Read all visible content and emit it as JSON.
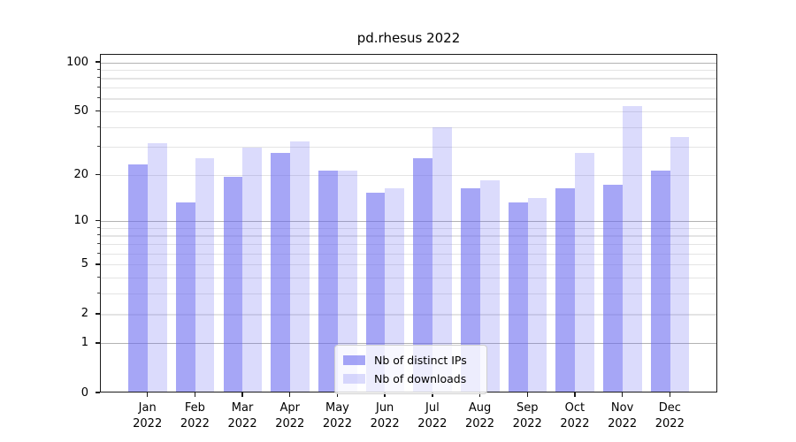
{
  "chart_data": {
    "type": "bar",
    "title": "pd.rhesus 2022",
    "categories": [
      "Jan",
      "Feb",
      "Mar",
      "Apr",
      "May",
      "Jun",
      "Jul",
      "Aug",
      "Sep",
      "Oct",
      "Nov",
      "Dec"
    ],
    "category_year": "2022",
    "series": [
      {
        "name": "Nb of distinct IPs",
        "fill": "rgba(101,101,240,0.58)",
        "values": [
          23,
          13,
          19,
          27,
          21,
          15,
          25,
          16,
          13,
          16,
          17,
          21
        ]
      },
      {
        "name": "Nb of downloads",
        "fill": "rgba(101,101,240,0.23)",
        "values": [
          31,
          25,
          29,
          32,
          21,
          16,
          39,
          18,
          14,
          27,
          53,
          34
        ]
      }
    ],
    "xlabel": "",
    "ylabel": "",
    "yscale": "log1p",
    "ylim": [
      0,
      112
    ],
    "ytick_values": [
      0,
      1,
      2,
      5,
      10,
      20,
      50,
      100
    ],
    "ytick_labels": [
      "0",
      "1",
      "2",
      "5",
      "10",
      "20",
      "50",
      "100"
    ],
    "grid_major": [
      1,
      10,
      100
    ],
    "grid_minor": [
      2,
      3,
      4,
      5,
      6,
      7,
      8,
      9,
      20,
      30,
      40,
      50,
      60,
      70,
      80,
      90
    ],
    "grid": "on",
    "legend_position": "lower center"
  },
  "legend": {
    "items": [
      {
        "label": "Nb of distinct IPs"
      },
      {
        "label": "Nb of downloads"
      }
    ]
  },
  "colors": {
    "bar_base": "#6565f0",
    "grid_major": "#b3b3b3",
    "grid_minor": "#e4e4e4",
    "spine": "#1a1a1a",
    "text": "#000000",
    "legend_border": "#cfcfcf"
  }
}
